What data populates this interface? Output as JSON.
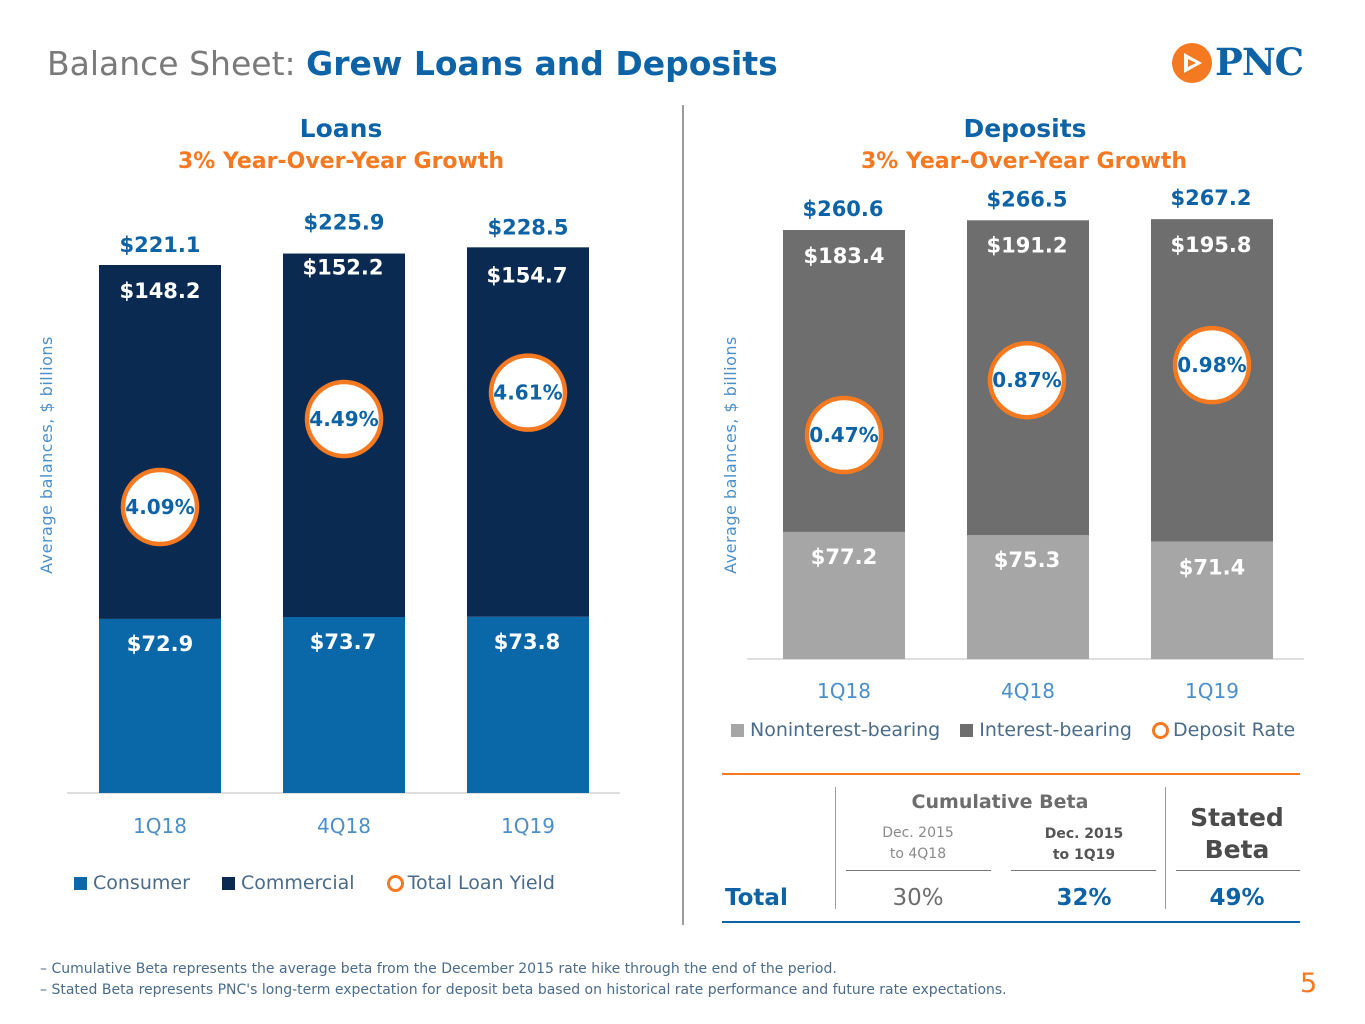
{
  "header": {
    "title_prefix": "Balance Sheet:",
    "title_main": "Grew Loans and Deposits",
    "logo_text": "PNC"
  },
  "loans": {
    "title": "Loans",
    "subtitle": "3% Year-Over-Year Growth",
    "legend": {
      "consumer": "Consumer",
      "commercial": "Commercial",
      "yield": "Total Loan Yield"
    }
  },
  "deposits": {
    "title": "Deposits",
    "subtitle": "3% Year-Over-Year Growth",
    "legend": {
      "nonint": "Noninterest-bearing",
      "int": "Interest-bearing",
      "rate": "Deposit Rate"
    }
  },
  "beta_table": {
    "header": "Cumulative Beta",
    "col1_line1": "Dec. 2015",
    "col1_line2": "to 4Q18",
    "col2_line1": "Dec. 2015",
    "col2_line2": "to 1Q19",
    "stated_line1": "Stated",
    "stated_line2": "Beta",
    "row_label": "Total",
    "val1": "30%",
    "val2": "32%",
    "val3": "49%"
  },
  "footnotes": {
    "line1": "– Cumulative Beta represents the average beta from the December 2015 rate hike through the end of the period.",
    "line2": "– Stated Beta represents PNC's long-term expectation for deposit beta based on historical rate performance and future rate expectations."
  },
  "page_number": "5",
  "colors": {
    "consumer": "#0a67a8",
    "commercial": "#0b2a52",
    "nonint": "#a6a6a6",
    "int": "#6e6e6e",
    "accent": "#f47920",
    "brand": "#0d63a5"
  },
  "chart_data": [
    {
      "name": "loans",
      "type": "bar",
      "stacked": true,
      "title": "Loans",
      "subtitle": "3% Year-Over-Year Growth",
      "ylabel": "Average balances, $ billions",
      "categories": [
        "1Q18",
        "4Q18",
        "1Q19"
      ],
      "ylim": [
        0,
        250
      ],
      "series": [
        {
          "name": "Consumer",
          "values": [
            72.9,
            73.7,
            73.8
          ],
          "labels": [
            "$72.9",
            "$73.7",
            "$73.8"
          ]
        },
        {
          "name": "Commercial",
          "values": [
            148.2,
            152.2,
            154.7
          ],
          "labels": [
            "$148.2",
            "$152.2",
            "$154.7"
          ]
        }
      ],
      "totals": [
        221.1,
        225.9,
        228.5
      ],
      "total_labels": [
        "$221.1",
        "$225.9",
        "$228.5"
      ],
      "rate_name": "Total Loan Yield",
      "rates": [
        4.09,
        4.49,
        4.61
      ],
      "rate_labels": [
        "4.09%",
        "4.49%",
        "4.61%"
      ]
    },
    {
      "name": "deposits",
      "type": "bar",
      "stacked": true,
      "title": "Deposits",
      "subtitle": "3% Year-Over-Year Growth",
      "ylabel": "Average balances, $ billions",
      "categories": [
        "1Q18",
        "4Q18",
        "1Q19"
      ],
      "ylim": [
        0,
        290
      ],
      "series": [
        {
          "name": "Noninterest-bearing",
          "values": [
            77.2,
            75.3,
            71.4
          ],
          "labels": [
            "$77.2",
            "$75.3",
            "$71.4"
          ]
        },
        {
          "name": "Interest-bearing",
          "values": [
            183.4,
            191.2,
            195.8
          ],
          "labels": [
            "$183.4",
            "$191.2",
            "$195.8"
          ]
        }
      ],
      "totals": [
        260.6,
        266.5,
        267.2
      ],
      "total_labels": [
        "$260.6",
        "$266.5",
        "$267.2"
      ],
      "rate_name": "Deposit Rate",
      "rates": [
        0.47,
        0.87,
        0.98
      ],
      "rate_labels": [
        "0.47%",
        "0.87%",
        "0.98%"
      ]
    }
  ]
}
